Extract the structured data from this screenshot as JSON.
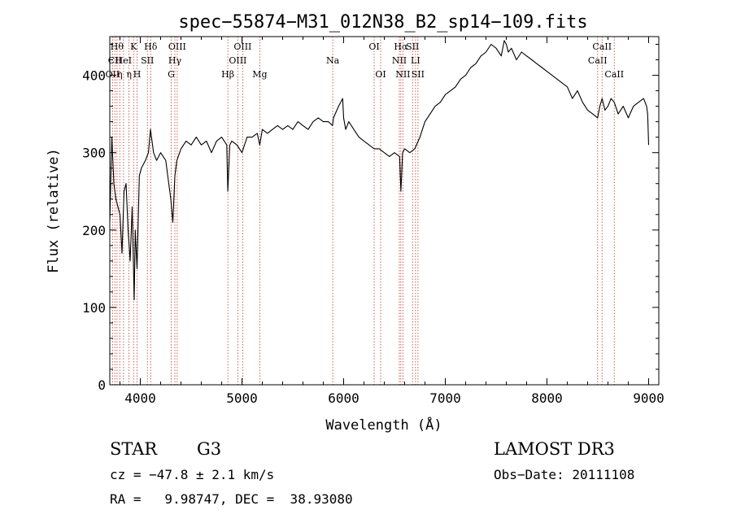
{
  "chart_data": {
    "type": "line",
    "title": "spec−55874−M31_012N38_B2_sp14−109.fits",
    "xlabel": "Wavelength (Å)",
    "ylabel": "Flux (relative)",
    "xlim": [
      3700,
      9100
    ],
    "ylim": [
      0,
      450
    ],
    "xticks": [
      4000,
      5000,
      6000,
      7000,
      8000,
      9000
    ],
    "yticks": [
      0,
      100,
      200,
      300,
      400
    ],
    "series": [
      {
        "name": "spectrum",
        "x": [
          3700,
          3720,
          3740,
          3760,
          3780,
          3800,
          3820,
          3840,
          3860,
          3880,
          3900,
          3920,
          3940,
          3950,
          3968,
          3990,
          4010,
          4050,
          4080,
          4100,
          4130,
          4160,
          4200,
          4250,
          4280,
          4300,
          4320,
          4340,
          4360,
          4400,
          4450,
          4500,
          4550,
          4600,
          4650,
          4700,
          4750,
          4800,
          4850,
          4861,
          4880,
          4900,
          4950,
          5000,
          5050,
          5100,
          5150,
          5175,
          5200,
          5250,
          5300,
          5350,
          5400,
          5450,
          5500,
          5550,
          5600,
          5650,
          5700,
          5750,
          5800,
          5850,
          5890,
          5900,
          5950,
          5990,
          6000,
          6020,
          6050,
          6100,
          6150,
          6200,
          6250,
          6300,
          6350,
          6400,
          6450,
          6500,
          6550,
          6563,
          6580,
          6600,
          6650,
          6700,
          6750,
          6800,
          6850,
          6900,
          6950,
          7000,
          7050,
          7100,
          7150,
          7200,
          7250,
          7300,
          7350,
          7400,
          7450,
          7500,
          7550,
          7580,
          7600,
          7620,
          7650,
          7700,
          7750,
          7800,
          7850,
          7900,
          7950,
          8000,
          8050,
          8100,
          8150,
          8200,
          8250,
          8300,
          8350,
          8400,
          8450,
          8498,
          8520,
          8542,
          8570,
          8600,
          8630,
          8662,
          8700,
          8750,
          8800,
          8850,
          8900,
          8950,
          8980,
          8990,
          9000
        ],
        "values": [
          210,
          320,
          260,
          240,
          230,
          220,
          170,
          250,
          260,
          200,
          160,
          230,
          110,
          200,
          150,
          270,
          280,
          290,
          300,
          330,
          300,
          290,
          300,
          290,
          260,
          240,
          210,
          270,
          290,
          305,
          315,
          310,
          320,
          310,
          315,
          300,
          315,
          320,
          310,
          250,
          310,
          315,
          310,
          300,
          320,
          320,
          325,
          310,
          330,
          325,
          330,
          335,
          330,
          335,
          330,
          340,
          335,
          330,
          340,
          345,
          340,
          340,
          335,
          345,
          360,
          370,
          345,
          330,
          340,
          330,
          320,
          315,
          310,
          305,
          305,
          300,
          295,
          300,
          295,
          250,
          300,
          305,
          300,
          305,
          320,
          340,
          350,
          360,
          365,
          375,
          380,
          385,
          395,
          400,
          410,
          415,
          425,
          430,
          440,
          435,
          425,
          445,
          440,
          430,
          435,
          420,
          430,
          425,
          420,
          415,
          410,
          405,
          400,
          395,
          390,
          385,
          370,
          380,
          365,
          355,
          350,
          345,
          360,
          370,
          355,
          360,
          370,
          365,
          350,
          360,
          345,
          360,
          365,
          370,
          360,
          350,
          310
        ]
      }
    ],
    "line_marks": [
      {
        "w": 3727,
        "label": "OII",
        "row": 3
      },
      {
        "w": 3750,
        "label": "CII",
        "row": 2
      },
      {
        "w": 3771,
        "label": "Hθ",
        "row": 1
      },
      {
        "w": 3798,
        "label": "η",
        "row": 3
      },
      {
        "w": 3835,
        "label": "HeI",
        "row": 2
      },
      {
        "w": 3889,
        "label": "η",
        "row": 3
      },
      {
        "w": 3934,
        "label": "K",
        "row": 1
      },
      {
        "w": 3968,
        "label": "H",
        "row": 3
      },
      {
        "w": 4070,
        "label": "SII",
        "row": 2
      },
      {
        "w": 4102,
        "label": "Hδ",
        "row": 1
      },
      {
        "w": 4304,
        "label": "G",
        "row": 3
      },
      {
        "w": 4340,
        "label": "Hγ",
        "row": 2
      },
      {
        "w": 4363,
        "label": "OIII",
        "row": 1
      },
      {
        "w": 4861,
        "label": "Hβ",
        "row": 3
      },
      {
        "w": 4959,
        "label": "OIII",
        "row": 2
      },
      {
        "w": 5007,
        "label": "OIII",
        "row": 1
      },
      {
        "w": 5175,
        "label": "Mg",
        "row": 3
      },
      {
        "w": 5893,
        "label": "Na",
        "row": 2
      },
      {
        "w": 6300,
        "label": "OI",
        "row": 1
      },
      {
        "w": 6364,
        "label": "OI",
        "row": 3
      },
      {
        "w": 6548,
        "label": "NII",
        "row": 2
      },
      {
        "w": 6563,
        "label": "Hα",
        "row": 1
      },
      {
        "w": 6583,
        "label": "NII",
        "row": 3
      },
      {
        "w": 6678,
        "label": "SII",
        "row": 1
      },
      {
        "w": 6707,
        "label": "LI",
        "row": 2
      },
      {
        "w": 6731,
        "label": "SII",
        "row": 3
      },
      {
        "w": 8498,
        "label": "CaII",
        "row": 2
      },
      {
        "w": 8542,
        "label": "CaII",
        "row": 1
      },
      {
        "w": 8662,
        "label": "CaII",
        "row": 3
      }
    ]
  },
  "info": {
    "class_label": "STAR",
    "subclass": "G3",
    "survey": "LAMOST DR3",
    "cz": "cz = −47.8 ± 2.1 km/s",
    "obs_date": "Obs−Date: 20111108",
    "radec": "RA =   9.98747, DEC =  38.93080"
  },
  "colors": {
    "axis": "#000000",
    "spectrum": "#000000",
    "line_marker": "#c0392b"
  }
}
